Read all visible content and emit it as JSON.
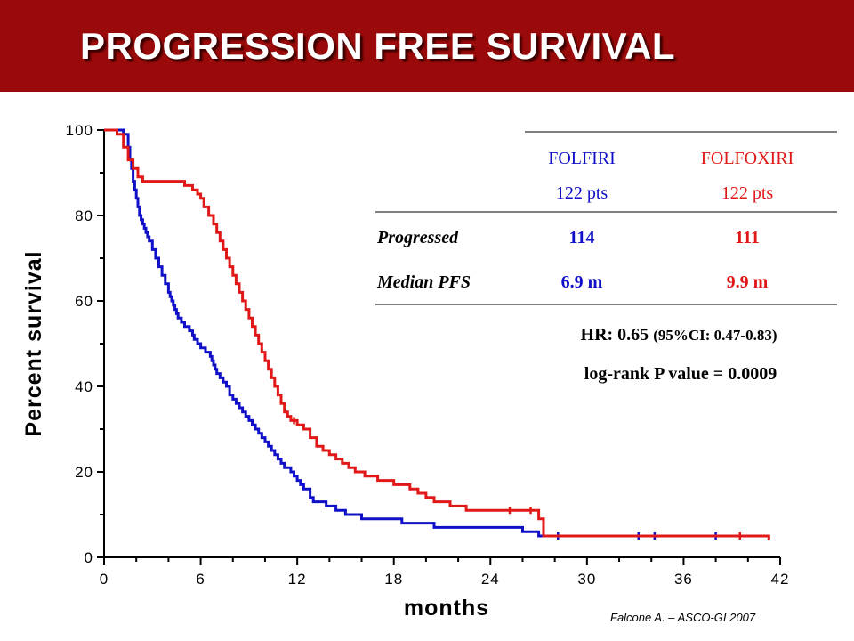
{
  "title": "PROGRESSION FREE SURVIVAL",
  "citation": "Falcone A. – ASCO-GI 2007",
  "colors": {
    "title_bar": "#9b0a0a",
    "folfiri": "#1010c8",
    "folfoxiri": "#e01818"
  },
  "table": {
    "headers": [
      {
        "name": "FOLFIRI",
        "pts": "122 pts"
      },
      {
        "name": "FOLFOXIRI",
        "pts": "122 pts"
      }
    ],
    "rows": [
      {
        "label": "Progressed",
        "values": [
          "114",
          "111"
        ]
      },
      {
        "label": "Median PFS",
        "values": [
          "6.9 m",
          "9.9 m"
        ]
      }
    ],
    "hr_main": "HR: 0.65",
    "hr_ci": "(95%CI: 0.47-0.83)",
    "logrank": "log-rank P value = 0.0009"
  },
  "chart_data": {
    "type": "line",
    "xlabel": "months",
    "ylabel": "Percent survival",
    "xlim": [
      0,
      42
    ],
    "ylim": [
      0,
      100
    ],
    "xticks": [
      0,
      6,
      12,
      18,
      24,
      30,
      36,
      42
    ],
    "yticks": [
      0,
      20,
      40,
      60,
      80,
      100
    ],
    "grid": false,
    "series": [
      {
        "name": "FOLFIRI",
        "color": "#1010c8",
        "x": [
          0,
          1.2,
          1.5,
          1.6,
          1.7,
          1.8,
          1.9,
          2.0,
          2.1,
          2.2,
          2.3,
          2.4,
          2.5,
          2.6,
          2.7,
          2.8,
          3.0,
          3.2,
          3.4,
          3.6,
          3.8,
          4.0,
          4.1,
          4.2,
          4.3,
          4.4,
          4.5,
          4.6,
          4.8,
          5.0,
          5.3,
          5.5,
          5.6,
          5.8,
          6.0,
          6.3,
          6.6,
          6.7,
          6.8,
          6.9,
          7.0,
          7.2,
          7.4,
          7.6,
          7.8,
          8.0,
          8.2,
          8.4,
          8.6,
          8.8,
          9.0,
          9.2,
          9.4,
          9.6,
          9.8,
          10.0,
          10.2,
          10.4,
          10.6,
          10.8,
          11.0,
          11.2,
          11.6,
          11.8,
          12.0,
          12.2,
          12.4,
          12.8,
          13.0,
          13.8,
          14.4,
          15.0,
          16.0,
          18.5,
          20.5,
          26.0,
          27.0,
          38.3
        ],
        "y": [
          100,
          99,
          96,
          93,
          91,
          88,
          86,
          84,
          82,
          80,
          79,
          78,
          77,
          76,
          75,
          74,
          72,
          70,
          68,
          66,
          64,
          62,
          61,
          60,
          59,
          58,
          57,
          56,
          55,
          54,
          53,
          52,
          51,
          50,
          49,
          48,
          47,
          46,
          45,
          44,
          43,
          42,
          41,
          40,
          38,
          37,
          36,
          35,
          34,
          33,
          32,
          31,
          30,
          29,
          28,
          27,
          26,
          25,
          24,
          23,
          22,
          21,
          20,
          19,
          18,
          17,
          16,
          14,
          13,
          12,
          11,
          10,
          9,
          8,
          7,
          6,
          5,
          5
        ],
        "censored_x": [
          28.2,
          33.2,
          34.2,
          38.0
        ]
      },
      {
        "name": "FOLFOXIRI",
        "color": "#e01818",
        "x": [
          0,
          0.8,
          1.2,
          1.5,
          1.8,
          2.1,
          2.4,
          2.7,
          3.0,
          3.3,
          4.0,
          4.5,
          5.0,
          5.5,
          5.8,
          6.0,
          6.2,
          6.5,
          6.8,
          7.0,
          7.2,
          7.4,
          7.6,
          7.8,
          8.0,
          8.2,
          8.4,
          8.6,
          8.8,
          9.0,
          9.2,
          9.4,
          9.6,
          9.8,
          10.0,
          10.2,
          10.4,
          10.6,
          10.8,
          11.0,
          11.2,
          11.4,
          11.6,
          12.0,
          12.4,
          12.8,
          13.2,
          13.6,
          14.0,
          14.4,
          14.8,
          15.2,
          15.6,
          16.2,
          17.0,
          18.0,
          19.0,
          19.5,
          20.0,
          20.5,
          21.5,
          22.5,
          27.0,
          27.3,
          41.3
        ],
        "y": [
          100,
          99,
          96,
          93,
          91,
          89,
          88,
          88,
          88,
          88,
          88,
          88,
          87,
          86,
          85,
          84,
          82,
          80,
          78,
          76,
          74,
          72,
          70,
          68,
          66,
          64,
          62,
          60,
          58,
          56,
          54,
          52,
          50,
          48,
          46,
          44,
          42,
          40,
          38,
          36,
          34,
          33,
          32,
          31,
          30,
          28,
          26,
          25,
          24,
          23,
          22,
          21,
          20,
          19,
          18,
          17,
          16,
          15,
          14,
          13,
          12,
          11,
          9,
          5,
          4
        ],
        "censored_x": [
          11.8,
          25.2,
          26.5,
          39.5
        ]
      }
    ]
  }
}
